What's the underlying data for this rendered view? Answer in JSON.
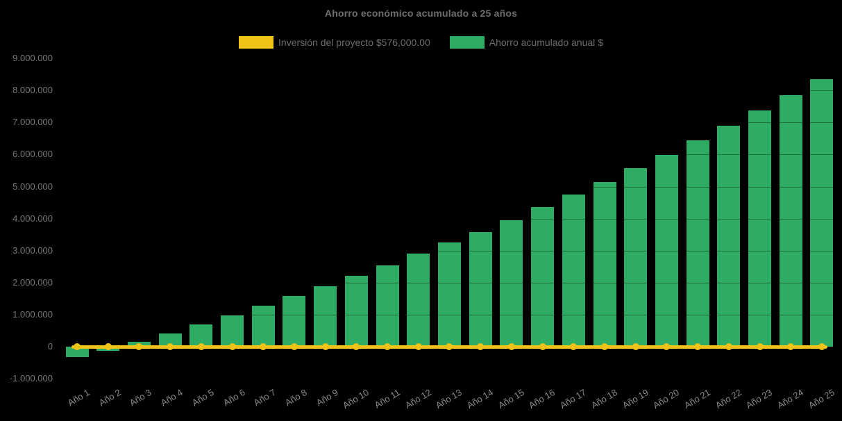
{
  "title": "Ahorro económico acumulado a 25 años",
  "legend": {
    "items": [
      {
        "label": "Inversión del proyecto $576,000.00",
        "color": "#EFC317",
        "series_type": "line"
      },
      {
        "label": "Ahorro acumulado anual $",
        "color": "#2EAC63",
        "series_type": "bar"
      }
    ]
  },
  "colors": {
    "background": "#000000",
    "bar_green": "#2EAC63",
    "line_yellow": "#EFC317",
    "title_text": "#6E6E6E",
    "axis_text": "#8A8A8A"
  },
  "chart_data": {
    "type": "bar",
    "title": "Ahorro económico acumulado a 25 años",
    "categories": [
      "Año 1",
      "Año 2",
      "Año 3",
      "Año 4",
      "Año 5",
      "Año 6",
      "Año 7",
      "Año 8",
      "Año 9",
      "Año 10",
      "Año 11",
      "Año 12",
      "Año 13",
      "Año 14",
      "Año 15",
      "Año 16",
      "Año 17",
      "Año 18",
      "Año 19",
      "Año 20",
      "Año 21",
      "Año 22",
      "Año 23",
      "Año 24",
      "Año 25"
    ],
    "series": [
      {
        "name": "Inversión del proyecto $576,000.00",
        "type": "line",
        "color": "#EFC317",
        "marker": "circle",
        "amount_label": "$576,000.00",
        "values": [
          0,
          0,
          0,
          0,
          0,
          0,
          0,
          0,
          0,
          0,
          0,
          0,
          0,
          0,
          0,
          0,
          0,
          0,
          0,
          0,
          0,
          0,
          0,
          0,
          0
        ]
      },
      {
        "name": "Ahorro acumulado anual $",
        "type": "bar",
        "color": "#2EAC63",
        "values": [
          -330000,
          -120000,
          160000,
          410000,
          690000,
          970000,
          1280000,
          1580000,
          1890000,
          2210000,
          2540000,
          2910000,
          3250000,
          3590000,
          3950000,
          4350000,
          4750000,
          5150000,
          5570000,
          5990000,
          6440000,
          6900000,
          7380000,
          7850000,
          8350000
        ]
      }
    ],
    "y_axis": {
      "min": -1000000,
      "max": 9000000,
      "tick_step": 1000000,
      "tick_labels": [
        "9.000.000",
        "8.000.000",
        "7.000.000",
        "6.000.000",
        "5.000.000",
        "4.000.000",
        "3.000.000",
        "2.000.000",
        "1.000.000",
        "0",
        "-1.000.000"
      ]
    },
    "x_axis": {
      "label_rotation_deg": -31
    },
    "legend_position": "top-center",
    "grid": false,
    "background": "#000000"
  }
}
